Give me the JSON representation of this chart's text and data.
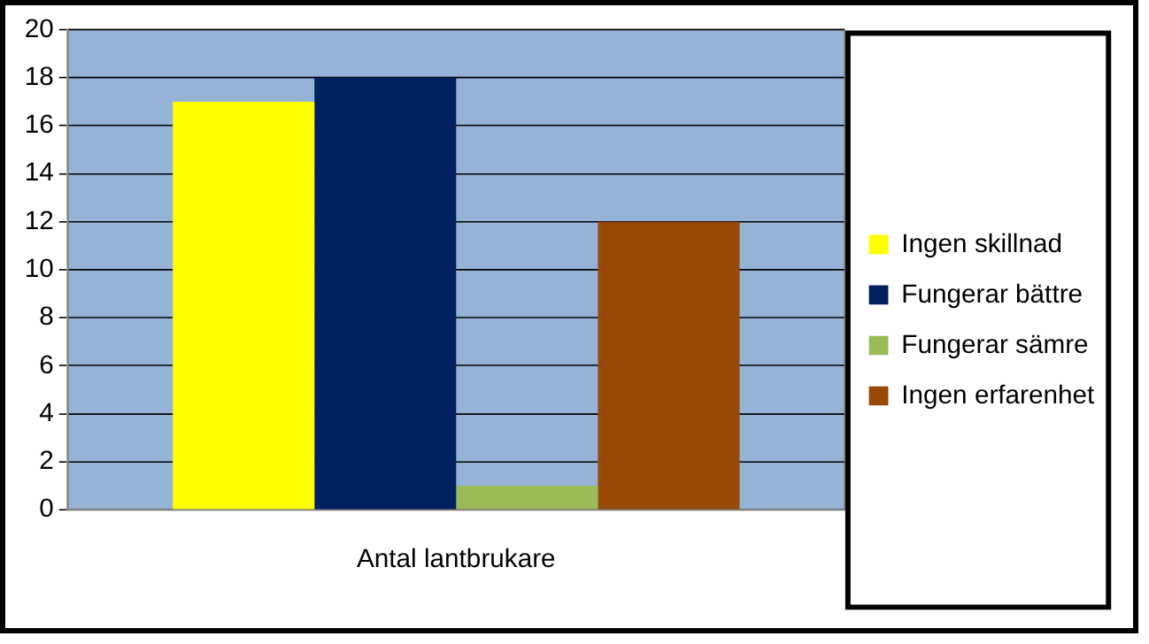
{
  "chart_data": {
    "type": "bar",
    "categories": [
      "Antal lantbrukare"
    ],
    "series": [
      {
        "name": "Ingen skillnad",
        "color": "#ffff00",
        "values": [
          17
        ]
      },
      {
        "name": "Fungerar bättre",
        "color": "#002060",
        "values": [
          18
        ]
      },
      {
        "name": "Fungerar sämre",
        "color": "#9bbb59",
        "values": [
          1
        ]
      },
      {
        "name": "Ingen erfarenhet",
        "color": "#984807",
        "values": [
          12
        ]
      }
    ],
    "ylim": [
      0,
      20
    ],
    "yticks": [
      0,
      2,
      4,
      6,
      8,
      10,
      12,
      14,
      16,
      18,
      20
    ],
    "grid": "y",
    "legend": "right"
  }
}
